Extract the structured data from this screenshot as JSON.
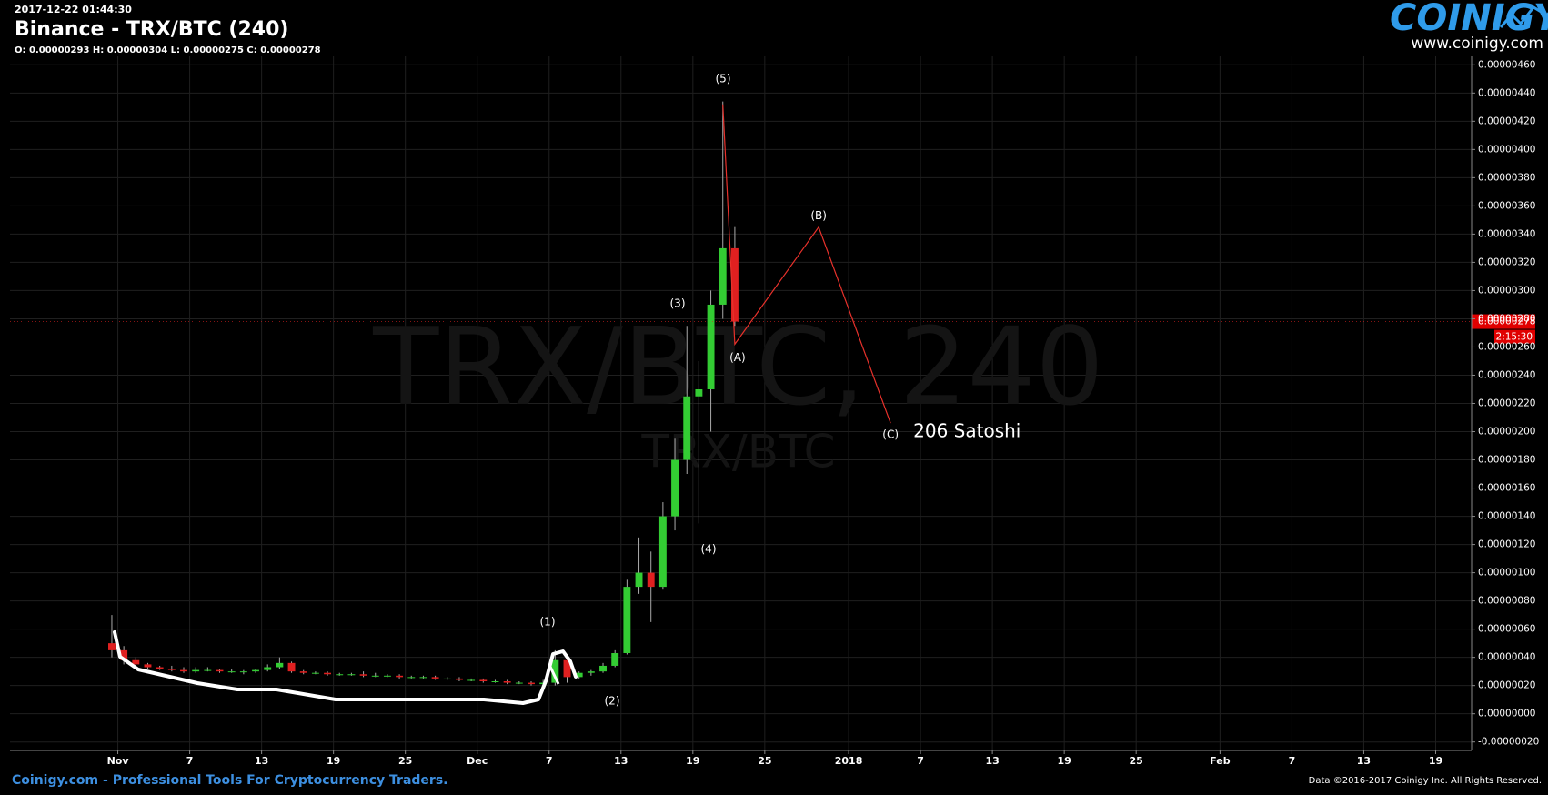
{
  "header": {
    "timestamp": "2017-12-22 01:44:30",
    "title": "Binance - TRX/BTC (240)",
    "ohlc": "O: 0.00000293 H: 0.00000304 L: 0.00000275 C: 0.00000278"
  },
  "logo": {
    "brand": "COINIGY",
    "url": "www.coinigy.com"
  },
  "footer": {
    "left": "Coinigy.com - Professional Tools For Cryptocurrency Traders.",
    "right": "Data ©2016-2017 Coinigy Inc. All Rights Reserved."
  },
  "chart_data": {
    "type": "candlestick",
    "watermark": "TRX/BTC, 240",
    "watermark_sub": "TRX/BTC",
    "up_color": "#33cc33",
    "down_color": "#e02020",
    "grid": true,
    "x": [
      "2017-10-31",
      "2017-11-01",
      "2017-11-02",
      "2017-11-03",
      "2017-11-04",
      "2017-11-05",
      "2017-11-06",
      "2017-11-07",
      "2017-11-08",
      "2017-11-09",
      "2017-11-10",
      "2017-11-11",
      "2017-11-12",
      "2017-11-13",
      "2017-11-14",
      "2017-11-15",
      "2017-11-16",
      "2017-11-17",
      "2017-11-18",
      "2017-11-19",
      "2017-11-20",
      "2017-11-21",
      "2017-11-22",
      "2017-11-23",
      "2017-11-24",
      "2017-11-25",
      "2017-11-26",
      "2017-11-27",
      "2017-11-28",
      "2017-11-29",
      "2017-11-30",
      "2017-12-01",
      "2017-12-02",
      "2017-12-03",
      "2017-12-04",
      "2017-12-05",
      "2017-12-06",
      "2017-12-07",
      "2017-12-08",
      "2017-12-09",
      "2017-12-10",
      "2017-12-11",
      "2017-12-12",
      "2017-12-13",
      "2017-12-14",
      "2017-12-15",
      "2017-12-16",
      "2017-12-17",
      "2017-12-18",
      "2017-12-19",
      "2017-12-20",
      "2017-12-21",
      "2017-12-22"
    ],
    "open": [
      5e-07,
      4.5e-07,
      3.8e-07,
      3.5e-07,
      3.3e-07,
      3.2e-07,
      3.1e-07,
      3e-07,
      3.1e-07,
      3.1e-07,
      3e-07,
      3e-07,
      3e-07,
      3.1e-07,
      3.3e-07,
      3.6e-07,
      3e-07,
      2.9e-07,
      2.9e-07,
      2.8e-07,
      2.8e-07,
      2.8e-07,
      2.7e-07,
      2.7e-07,
      2.7e-07,
      2.6e-07,
      2.6e-07,
      2.6e-07,
      2.5e-07,
      2.5e-07,
      2.4e-07,
      2.4e-07,
      2.3e-07,
      2.3e-07,
      2.2e-07,
      2.2e-07,
      2.1e-07,
      2.2e-07,
      3.8e-07,
      2.6e-07,
      2.9e-07,
      3e-07,
      3.4e-07,
      4.3e-07,
      9e-07,
      1e-06,
      9e-07,
      1.4e-06,
      1.8e-06,
      2.25e-06,
      2.3e-06,
      2.9e-06,
      3.3e-06
    ],
    "high": [
      7e-07,
      4.8e-07,
      4e-07,
      3.6e-07,
      3.4e-07,
      3.4e-07,
      3.3e-07,
      3.3e-07,
      3.3e-07,
      3.2e-07,
      3.2e-07,
      3.1e-07,
      3.2e-07,
      3.5e-07,
      4e-07,
      3.7e-07,
      3.1e-07,
      3e-07,
      3e-07,
      2.9e-07,
      2.9e-07,
      3e-07,
      2.9e-07,
      2.8e-07,
      2.8e-07,
      2.7e-07,
      2.7e-07,
      2.7e-07,
      2.6e-07,
      2.6e-07,
      2.5e-07,
      2.5e-07,
      2.4e-07,
      2.4e-07,
      2.3e-07,
      2.3e-07,
      2.4e-07,
      4.5e-07,
      4e-07,
      3e-07,
      3.1e-07,
      3.6e-07,
      4.5e-07,
      9.5e-07,
      1.25e-06,
      1.15e-06,
      1.5e-06,
      1.95e-06,
      2.75e-06,
      2.5e-06,
      3e-06,
      4.34e-06,
      3.45e-06
    ],
    "low": [
      4e-07,
      3.5e-07,
      3.3e-07,
      3.2e-07,
      3.1e-07,
      3e-07,
      2.9e-07,
      2.9e-07,
      3e-07,
      2.9e-07,
      2.9e-07,
      2.8e-07,
      2.9e-07,
      3e-07,
      3.2e-07,
      2.9e-07,
      2.8e-07,
      2.8e-07,
      2.7e-07,
      2.7e-07,
      2.7e-07,
      2.6e-07,
      2.6e-07,
      2.6e-07,
      2.5e-07,
      2.5e-07,
      2.5e-07,
      2.4e-07,
      2.4e-07,
      2.3e-07,
      2.3e-07,
      2.2e-07,
      2.2e-07,
      2.1e-07,
      2.1e-07,
      2e-07,
      1.9e-07,
      2e-07,
      2.2e-07,
      2.5e-07,
      2.7e-07,
      2.9e-07,
      3.3e-07,
      4.2e-07,
      8.5e-07,
      6.5e-07,
      8.8e-07,
      1.3e-06,
      1.7e-06,
      1.35e-06,
      2e-06,
      2.8e-06,
      2.75e-06
    ],
    "close": [
      4.5e-07,
      3.8e-07,
      3.5e-07,
      3.3e-07,
      3.2e-07,
      3.1e-07,
      3e-07,
      3.1e-07,
      3.1e-07,
      3e-07,
      3e-07,
      3e-07,
      3.1e-07,
      3.3e-07,
      3.6e-07,
      3e-07,
      2.9e-07,
      2.9e-07,
      2.8e-07,
      2.8e-07,
      2.8e-07,
      2.7e-07,
      2.7e-07,
      2.7e-07,
      2.6e-07,
      2.6e-07,
      2.6e-07,
      2.5e-07,
      2.5e-07,
      2.4e-07,
      2.4e-07,
      2.3e-07,
      2.3e-07,
      2.2e-07,
      2.2e-07,
      2.1e-07,
      2.2e-07,
      3.8e-07,
      2.6e-07,
      2.9e-07,
      3e-07,
      3.4e-07,
      4.3e-07,
      9e-07,
      1e-06,
      9e-07,
      1.4e-06,
      1.8e-06,
      2.25e-06,
      2.3e-06,
      2.9e-06,
      3.3e-06,
      2.78e-06
    ],
    "xlim": [
      "2017-10-23",
      "2018-02-22"
    ],
    "xticks": [
      {
        "value": "2017-11-01",
        "label": "Nov"
      },
      {
        "value": "2017-11-07",
        "label": "7"
      },
      {
        "value": "2017-11-13",
        "label": "13"
      },
      {
        "value": "2017-11-19",
        "label": "19"
      },
      {
        "value": "2017-11-25",
        "label": "25"
      },
      {
        "value": "2017-12-01",
        "label": "Dec"
      },
      {
        "value": "2017-12-07",
        "label": "7"
      },
      {
        "value": "2017-12-13",
        "label": "13"
      },
      {
        "value": "2017-12-19",
        "label": "19"
      },
      {
        "value": "2017-12-25",
        "label": "25"
      },
      {
        "value": "2018-01-01",
        "label": "2018"
      },
      {
        "value": "2018-01-07",
        "label": "7"
      },
      {
        "value": "2018-01-13",
        "label": "13"
      },
      {
        "value": "2018-01-19",
        "label": "19"
      },
      {
        "value": "2018-01-25",
        "label": "25"
      },
      {
        "value": "2018-02-01",
        "label": "Feb"
      },
      {
        "value": "2018-02-07",
        "label": "7"
      },
      {
        "value": "2018-02-13",
        "label": "13"
      },
      {
        "value": "2018-02-19",
        "label": "19"
      }
    ],
    "ylim": [
      -2.6e-07,
      4.66e-06
    ],
    "yticks": [
      {
        "value": -2e-07,
        "label": "-0.00000020"
      },
      {
        "value": 0,
        "label": "0.00000000"
      },
      {
        "value": 2e-07,
        "label": "0.00000020"
      },
      {
        "value": 4e-07,
        "label": "0.00000040"
      },
      {
        "value": 6e-07,
        "label": "0.00000060"
      },
      {
        "value": 8e-07,
        "label": "0.00000080"
      },
      {
        "value": 1e-06,
        "label": "0.00000100"
      },
      {
        "value": 1.2e-06,
        "label": "0.00000120"
      },
      {
        "value": 1.4e-06,
        "label": "0.00000140"
      },
      {
        "value": 1.6e-06,
        "label": "0.00000160"
      },
      {
        "value": 1.8e-06,
        "label": "0.00000180"
      },
      {
        "value": 2e-06,
        "label": "0.00000200"
      },
      {
        "value": 2.2e-06,
        "label": "0.00000220"
      },
      {
        "value": 2.4e-06,
        "label": "0.00000240"
      },
      {
        "value": 2.6e-06,
        "label": "0.00000260"
      },
      {
        "value": 2.8e-06,
        "label": "0.00000280"
      },
      {
        "value": 3e-06,
        "label": "0.00000300"
      },
      {
        "value": 3.2e-06,
        "label": "0.00000320"
      },
      {
        "value": 3.4e-06,
        "label": "0.00000340"
      },
      {
        "value": 3.6e-06,
        "label": "0.00000360"
      },
      {
        "value": 3.8e-06,
        "label": "0.00000380"
      },
      {
        "value": 4e-06,
        "label": "0.00000400"
      },
      {
        "value": 4.2e-06,
        "label": "0.00000420"
      },
      {
        "value": 4.4e-06,
        "label": "0.00000440"
      },
      {
        "value": 4.6e-06,
        "label": "0.00000460"
      }
    ],
    "last_price": {
      "value": 2.78e-06,
      "label": "0.00000278"
    },
    "countdown": "2:15:30",
    "wave_labels": [
      "(1)",
      "(2)",
      "(3)",
      "(4)",
      "(5)"
    ],
    "projection": {
      "color": "#e8312b",
      "x": [
        "2017-12-21",
        "2017-12-22",
        "2017-12-29",
        "2018-01-04"
      ],
      "values": [
        4.32e-06,
        2.62e-06,
        3.45e-06,
        2.06e-06
      ],
      "labels": [
        null,
        "(A)",
        "(B)",
        "(C)"
      ]
    },
    "target_label": "206 Satoshi"
  }
}
